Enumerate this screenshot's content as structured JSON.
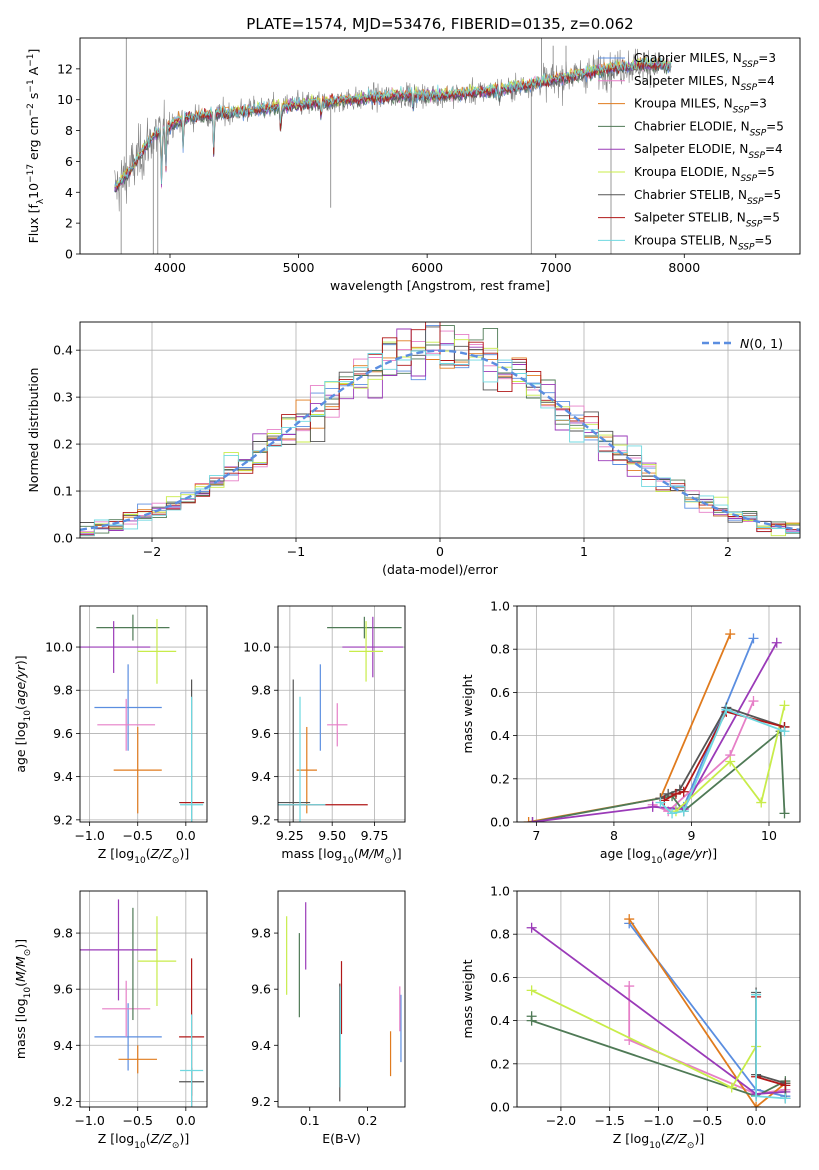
{
  "figure": {
    "title": "PLATE=1574, MJD=53476, FIBERID=0135, z=0.062"
  },
  "colors": {
    "Chabrier MILES": "#5b8ee0",
    "Salpeter MILES": "#e67fc7",
    "Kroupa MILES": "#e07b1e",
    "Chabrier ELODIE": "#4f7a56",
    "Salpeter ELODIE": "#9a3ab8",
    "Kroupa ELODIE": "#c8ec4a",
    "Chabrier STELIB": "#555555",
    "Salpeter STELIB": "#b01818",
    "Kroupa STELIB": "#6fd8e0",
    "data": "#808080"
  },
  "chart_data": [
    {
      "type": "line",
      "id": "spectrum",
      "xlabel": "wavelength [Angstrom, rest frame]",
      "ylabel": "Flux [f_λ10^-17 erg cm^-2 s^-1 A^-1]",
      "xlim": [
        3300,
        8900
      ],
      "ylim": [
        0,
        14
      ],
      "xticks": [
        4000,
        5000,
        6000,
        7000,
        8000
      ],
      "yticks": [
        0,
        2,
        4,
        6,
        8,
        10,
        12
      ],
      "legend_position": "right",
      "legend": [
        {
          "label": "Chabrier MILES, N_SSP=3"
        },
        {
          "label": "Salpeter MILES, N_SSP=4"
        },
        {
          "label": "Kroupa MILES, N_SSP=3"
        },
        {
          "label": "Chabrier ELODIE, N_SSP=5"
        },
        {
          "label": "Salpeter ELODIE, N_SSP=4"
        },
        {
          "label": "Kroupa ELODIE, N_SSP=5"
        },
        {
          "label": "Chabrier STELIB, N_SSP=5"
        },
        {
          "label": "Salpeter STELIB, N_SSP=5"
        },
        {
          "label": "Kroupa STELIB, N_SSP=5"
        }
      ],
      "continuum_approx": [
        [
          3570,
          4.2
        ],
        [
          3700,
          5.5
        ],
        [
          3850,
          7.5
        ],
        [
          3950,
          8.1
        ],
        [
          4100,
          8.8
        ],
        [
          4300,
          9.0
        ],
        [
          4600,
          9.3
        ],
        [
          5000,
          9.7
        ],
        [
          5400,
          10.0
        ],
        [
          5800,
          10.3
        ],
        [
          6200,
          10.3
        ],
        [
          6600,
          10.7
        ],
        [
          7000,
          11.3
        ],
        [
          7400,
          12.0
        ],
        [
          7700,
          12.3
        ],
        [
          7900,
          12.2
        ]
      ]
    },
    {
      "type": "line",
      "id": "residual-histogram",
      "xlabel": "(data-model)/error",
      "ylabel": "Normed distribution",
      "xlim": [
        -2.5,
        2.5
      ],
      "ylim": [
        0,
        0.46
      ],
      "xticks": [
        -2,
        -1,
        0,
        1,
        2
      ],
      "yticks": [
        0.0,
        0.1,
        0.2,
        0.3,
        0.4
      ],
      "legend_position": "top-right",
      "reference_curve": {
        "label": "N(0,1)",
        "mu": 0,
        "sigma": 1
      },
      "bin_width": 0.1
    },
    {
      "type": "scatter",
      "id": "age-vs-z",
      "xlabel": "Z [log10(Z/Z☉)]",
      "ylabel": "age [log10(age/yr)]",
      "xlim": [
        -1.1,
        0.22
      ],
      "ylim": [
        9.19,
        10.19
      ],
      "xticks": [
        -1.0,
        -0.5,
        0.0
      ],
      "yticks": [
        9.2,
        9.4,
        9.6,
        9.8,
        10.0
      ],
      "points": [
        {
          "series": "Chabrier MILES",
          "x": -0.6,
          "xerr": 0.35,
          "y": 9.72,
          "yerr": 0.2
        },
        {
          "series": "Salpeter MILES",
          "x": -0.62,
          "xerr": 0.3,
          "y": 9.64,
          "yerr": 0.12
        },
        {
          "series": "Kroupa MILES",
          "x": -0.5,
          "xerr": 0.25,
          "y": 9.43,
          "yerr": 0.2
        },
        {
          "series": "Chabrier ELODIE",
          "x": -0.55,
          "xerr": 0.38,
          "y": 10.09,
          "yerr": 0.06
        },
        {
          "series": "Salpeter ELODIE",
          "x": -0.75,
          "xerr": 0.38,
          "y": 10.0,
          "yerr": 0.12
        },
        {
          "series": "Kroupa ELODIE",
          "x": -0.3,
          "xerr": 0.2,
          "y": 9.98,
          "yerr": 0.15
        },
        {
          "series": "Chabrier STELIB",
          "x": 0.06,
          "xerr": 0.13,
          "y": 9.28,
          "yerr": 0.57
        },
        {
          "series": "Salpeter STELIB",
          "x": 0.06,
          "xerr": 0.12,
          "y": 9.28,
          "yerr": 0.0
        },
        {
          "series": "Kroupa STELIB",
          "x": 0.06,
          "xerr": 0.12,
          "y": 9.27,
          "yerr": 0.5
        }
      ]
    },
    {
      "type": "scatter",
      "id": "age-vs-mass",
      "xlabel": "mass [log10(M/M☉)]",
      "ylabel": "",
      "xlim": [
        9.18,
        9.93
      ],
      "ylim": [
        9.19,
        10.19
      ],
      "xticks": [
        9.25,
        9.5,
        9.75
      ],
      "yticks": [
        9.2,
        9.4,
        9.6,
        9.8,
        10.0
      ],
      "points": [
        {
          "series": "Chabrier MILES",
          "x": 9.43,
          "xerr": 0.0,
          "y": 9.72,
          "yerr": 0.2
        },
        {
          "series": "Salpeter MILES",
          "x": 9.53,
          "xerr": 0.06,
          "y": 9.64,
          "yerr": 0.1
        },
        {
          "series": "Kroupa MILES",
          "x": 9.35,
          "xerr": 0.06,
          "y": 9.43,
          "yerr": 0.2
        },
        {
          "series": "Chabrier ELODIE",
          "x": 9.69,
          "xerr": 0.22,
          "y": 10.09,
          "yerr": 0.05
        },
        {
          "series": "Salpeter ELODIE",
          "x": 9.74,
          "xerr": 0.18,
          "y": 10.0,
          "yerr": 0.14
        },
        {
          "series": "Kroupa ELODIE",
          "x": 9.7,
          "xerr": 0.1,
          "y": 9.98,
          "yerr": 0.14
        },
        {
          "series": "Chabrier STELIB",
          "x": 9.27,
          "xerr": 0.1,
          "y": 9.28,
          "yerr": 0.57
        },
        {
          "series": "Salpeter STELIB",
          "x": 9.43,
          "xerr": 0.28,
          "y": 9.27,
          "yerr": 0.0
        },
        {
          "series": "Kroupa STELIB",
          "x": 9.31,
          "xerr": 0.15,
          "y": 9.27,
          "yerr": 0.5
        }
      ]
    },
    {
      "type": "line",
      "id": "mass-weight-vs-age",
      "xlabel": "age [log10(age/yr)]",
      "ylabel": "mass weight",
      "xlim": [
        6.75,
        10.4
      ],
      "ylim": [
        0,
        1
      ],
      "xticks": [
        7,
        8,
        9,
        10
      ],
      "yticks": [
        0.0,
        0.2,
        0.4,
        0.6,
        0.8,
        1.0
      ],
      "series": [
        {
          "name": "Chabrier MILES",
          "x": [
            8.8,
            8.9,
            9.8
          ],
          "y": [
            0.06,
            0.07,
            0.85
          ]
        },
        {
          "name": "Salpeter MILES",
          "x": [
            8.5,
            8.7,
            9.5,
            9.8
          ],
          "y": [
            0.08,
            0.05,
            0.31,
            0.56
          ]
        },
        {
          "name": "Kroupa MILES",
          "x": [
            6.9,
            8.6,
            9.5
          ],
          "y": [
            0.0,
            0.11,
            0.87
          ]
        },
        {
          "name": "Chabrier ELODIE",
          "x": [
            6.95,
            8.75,
            8.9,
            10.15,
            10.2
          ],
          "y": [
            0.0,
            0.12,
            0.05,
            0.42,
            0.04
          ]
        },
        {
          "name": "Salpeter ELODIE",
          "x": [
            6.95,
            8.5,
            8.9,
            10.1
          ],
          "y": [
            0.0,
            0.07,
            0.06,
            0.83
          ]
        },
        {
          "name": "Kroupa ELODIE",
          "x": [
            8.8,
            9.5,
            9.9,
            10.2
          ],
          "y": [
            0.05,
            0.28,
            0.09,
            0.54
          ]
        },
        {
          "name": "Chabrier STELIB",
          "x": [
            8.6,
            8.7,
            8.85,
            9.45,
            10.2
          ],
          "y": [
            0.11,
            0.13,
            0.15,
            0.53,
            0.44
          ]
        },
        {
          "name": "Salpeter STELIB",
          "x": [
            8.65,
            8.8,
            8.9,
            9.45,
            10.2
          ],
          "y": [
            0.1,
            0.13,
            0.14,
            0.51,
            0.44
          ]
        },
        {
          "name": "Kroupa STELIB",
          "x": [
            8.6,
            8.75,
            8.9,
            9.45,
            10.2
          ],
          "y": [
            0.09,
            0.04,
            0.05,
            0.52,
            0.42
          ]
        }
      ]
    },
    {
      "type": "scatter",
      "id": "mass-vs-z",
      "xlabel": "Z [log10(Z/Z☉)]",
      "ylabel": "mass [log10(M/M☉)]",
      "xlim": [
        -1.1,
        0.22
      ],
      "ylim": [
        9.18,
        9.95
      ],
      "xticks": [
        -1.0,
        -0.5,
        0.0
      ],
      "yticks": [
        9.2,
        9.4,
        9.6,
        9.8
      ],
      "points": [
        {
          "series": "Chabrier MILES",
          "x": -0.6,
          "xerr": 0.35,
          "y": 9.43,
          "yerr": 0.12
        },
        {
          "series": "Salpeter MILES",
          "x": -0.62,
          "xerr": 0.25,
          "y": 9.53,
          "yerr": 0.1
        },
        {
          "series": "Kroupa MILES",
          "x": -0.5,
          "xerr": 0.2,
          "y": 9.35,
          "yerr": 0.05
        },
        {
          "series": "Chabrier ELODIE",
          "x": -0.55,
          "xerr": 0.0,
          "y": 9.69,
          "yerr": 0.2
        },
        {
          "series": "Salpeter ELODIE",
          "x": -0.7,
          "xerr": 0.4,
          "y": 9.74,
          "yerr": 0.18
        },
        {
          "series": "Kroupa ELODIE",
          "x": -0.3,
          "xerr": 0.2,
          "y": 9.7,
          "yerr": 0.16
        },
        {
          "series": "Chabrier STELIB",
          "x": 0.06,
          "xerr": 0.13,
          "y": 9.27,
          "yerr": 0.05
        },
        {
          "series": "Salpeter STELIB",
          "x": 0.06,
          "xerr": 0.13,
          "y": 9.43,
          "yerr": 0.28
        },
        {
          "series": "Kroupa STELIB",
          "x": 0.06,
          "xerr": 0.12,
          "y": 9.31,
          "yerr": 0.2
        }
      ]
    },
    {
      "type": "scatter",
      "id": "mass-vs-ebv",
      "xlabel": "E(B-V)",
      "ylabel": "",
      "xlim": [
        0.045,
        0.265
      ],
      "ylim": [
        9.18,
        9.95
      ],
      "xticks": [
        0.1,
        0.2
      ],
      "yticks": [
        9.2,
        9.4,
        9.6,
        9.8
      ],
      "points": [
        {
          "series": "Chabrier MILES",
          "x": 0.258,
          "yerr": 0.12,
          "y": 9.46
        },
        {
          "series": "Salpeter MILES",
          "x": 0.256,
          "yerr": 0.08,
          "y": 9.53
        },
        {
          "series": "Kroupa MILES",
          "x": 0.24,
          "yerr": 0.08,
          "y": 9.37
        },
        {
          "series": "Chabrier ELODIE",
          "x": 0.082,
          "yerr": 0.15,
          "y": 9.65
        },
        {
          "series": "Salpeter ELODIE",
          "x": 0.093,
          "yerr": 0.12,
          "y": 9.79
        },
        {
          "series": "Kroupa ELODIE",
          "x": 0.06,
          "yerr": 0.14,
          "y": 9.72
        },
        {
          "series": "Chabrier STELIB",
          "x": 0.152,
          "yerr": 0.21,
          "y": 9.41
        },
        {
          "series": "Salpeter STELIB",
          "x": 0.155,
          "yerr": 0.13,
          "y": 9.57
        },
        {
          "series": "Kroupa STELIB",
          "x": 0.153,
          "yerr": 0.18,
          "y": 9.43
        }
      ]
    },
    {
      "type": "line",
      "id": "mass-weight-vs-z",
      "xlabel": "Z [log10(Z/Z☉)]",
      "ylabel": "mass weight",
      "xlim": [
        -2.45,
        0.45
      ],
      "ylim": [
        0,
        1
      ],
      "xticks": [
        -2.0,
        -1.5,
        -1.0,
        -0.5,
        0.0
      ],
      "yticks": [
        0.0,
        0.2,
        0.4,
        0.6,
        0.8,
        1.0
      ],
      "series": [
        {
          "name": "Chabrier MILES",
          "x": [
            -1.3,
            0.0,
            0.3
          ],
          "y": [
            0.85,
            0.08,
            0.05
          ]
        },
        {
          "name": "Salpeter MILES",
          "x": [
            -1.3,
            -1.3,
            0.0,
            0.3
          ],
          "y": [
            0.56,
            0.31,
            0.06,
            0.08
          ]
        },
        {
          "name": "Kroupa MILES",
          "x": [
            -1.3,
            0.0,
            0.3
          ],
          "y": [
            0.87,
            0.0,
            0.11
          ]
        },
        {
          "name": "Chabrier ELODIE",
          "x": [
            -2.3,
            -2.3,
            0.0,
            0.3
          ],
          "y": [
            0.42,
            0.4,
            0.05,
            0.12
          ]
        },
        {
          "name": "Salpeter ELODIE",
          "x": [
            -2.3,
            0.0,
            0.3
          ],
          "y": [
            0.83,
            0.06,
            0.07
          ]
        },
        {
          "name": "Kroupa ELODIE",
          "x": [
            -2.3,
            -0.25,
            0.0
          ],
          "y": [
            0.54,
            0.09,
            0.28
          ]
        },
        {
          "name": "Chabrier STELIB",
          "x": [
            0.0,
            0.0,
            0.3,
            0.3
          ],
          "y": [
            0.53,
            0.15,
            0.11,
            0.04
          ]
        },
        {
          "name": "Salpeter STELIB",
          "x": [
            0.0,
            0.0,
            0.3
          ],
          "y": [
            0.51,
            0.14,
            0.1
          ]
        },
        {
          "name": "Kroupa STELIB",
          "x": [
            0.0,
            0.0,
            0.3
          ],
          "y": [
            0.52,
            0.05,
            0.04
          ]
        }
      ]
    }
  ]
}
